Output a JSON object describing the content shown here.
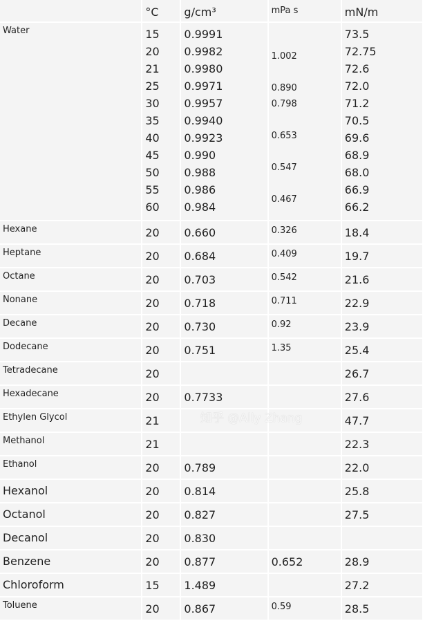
{
  "headers": {
    "name": "",
    "temp": "°C",
    "density": "g/cm³",
    "viscosity": "mPa s",
    "tension": "mN/m"
  },
  "water": {
    "name": "Water",
    "temps": [
      "15",
      "20",
      "21",
      "25",
      "30",
      "35",
      "40",
      "45",
      "50",
      "55",
      "60"
    ],
    "densities": [
      "0.9991",
      "0.9982",
      "0.9980",
      "0.9971",
      "0.9957",
      "0.9940",
      "0.9923",
      "0.990",
      "0.988",
      "0.986",
      "0.984"
    ],
    "viscosities": [
      "",
      "1.002",
      "",
      "0.890",
      "0.798",
      "",
      "0.653",
      "",
      "0.547",
      "",
      "0.467"
    ],
    "tensions": [
      "73.5",
      "72.75",
      "72.6",
      "72.0",
      "71.2",
      "70.5",
      "69.6",
      "68.9",
      "68.0",
      "66.9",
      "66.2"
    ]
  },
  "rows": [
    {
      "name": "Hexane",
      "temp": "20",
      "density": "0.660",
      "viscosity": "0.326",
      "tension": "18.4"
    },
    {
      "name": "Heptane",
      "temp": "20",
      "density": "0.684",
      "viscosity": "0.409",
      "tension": "19.7"
    },
    {
      "name": "Octane",
      "temp": "20",
      "density": "0.703",
      "viscosity": "0.542",
      "tension": "21.6"
    },
    {
      "name": "Nonane",
      "temp": "20",
      "density": "0.718",
      "viscosity": "0.711",
      "tension": "22.9"
    },
    {
      "name": "Decane",
      "temp": "20",
      "density": "0.730",
      "viscosity": "0.92",
      "tension": "23.9"
    },
    {
      "name": "Dodecane",
      "temp": "20",
      "density": "0.751",
      "viscosity": "1.35",
      "tension": "25.4"
    },
    {
      "name": "Tetradecane",
      "temp": "20",
      "density": "",
      "viscosity": "",
      "tension": "26.7"
    },
    {
      "name": "Hexadecane",
      "temp": "20",
      "density": "0.7733",
      "viscosity": "",
      "tension": "27.6"
    },
    {
      "name": "Ethylen Glycol",
      "temp": "21",
      "density": "",
      "viscosity": "",
      "tension": "47.7"
    },
    {
      "name": "Methanol",
      "temp": "21",
      "density": "",
      "viscosity": "",
      "tension": "22.3"
    },
    {
      "name": "Ethanol",
      "temp": "20",
      "density": "0.789",
      "viscosity": "",
      "tension": "22.0"
    },
    {
      "name": "Hexanol",
      "temp": "20",
      "density": "0.814",
      "viscosity": "",
      "tension": "25.8",
      "big": true
    },
    {
      "name": "Octanol",
      "temp": "20",
      "density": "0.827",
      "viscosity": "",
      "tension": "27.5",
      "big": true
    },
    {
      "name": "Decanol",
      "temp": "20",
      "density": "0.830",
      "viscosity": "",
      "tension": "",
      "big": true
    },
    {
      "name": "Benzene",
      "temp": "20",
      "density": "0.877",
      "viscosity": "0.652",
      "tension": "28.9",
      "big": true,
      "bigVisc": true
    },
    {
      "name": "Chloroform",
      "temp": "15",
      "density": "1.489",
      "viscosity": "",
      "tension": "27.2",
      "big": true
    },
    {
      "name": "Toluene",
      "temp": "20",
      "density": "0.867",
      "viscosity": "0.59",
      "tension": "28.5"
    }
  ],
  "watermark": "知乎 @Ally Zhang"
}
